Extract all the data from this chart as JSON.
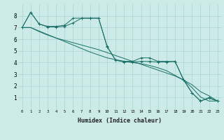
{
  "xlabel": "Humidex (Indice chaleur)",
  "bg_color": "#cceae8",
  "grid_color": "#aad4d0",
  "line_color": "#1a7068",
  "xlim": [
    -0.5,
    23.5
  ],
  "ylim": [
    0,
    9
  ],
  "xticks": [
    0,
    1,
    2,
    3,
    4,
    5,
    6,
    7,
    8,
    9,
    10,
    11,
    12,
    13,
    14,
    15,
    16,
    17,
    18,
    19,
    20,
    21,
    22,
    23
  ],
  "yticks": [
    1,
    2,
    3,
    4,
    5,
    6,
    7,
    8
  ],
  "series": [
    {
      "x": [
        0,
        1,
        2,
        3,
        4,
        5,
        6,
        7,
        8,
        9,
        10,
        11,
        12,
        13,
        14,
        15,
        16,
        17,
        18,
        19,
        20,
        21,
        22,
        23
      ],
      "y": [
        7.0,
        8.3,
        7.3,
        7.1,
        7.1,
        7.2,
        7.8,
        7.8,
        7.8,
        7.8,
        5.4,
        4.2,
        4.1,
        4.1,
        4.4,
        4.4,
        4.1,
        4.1,
        4.1,
        2.5,
        1.4,
        0.7,
        1.0,
        0.7
      ],
      "marker": true
    },
    {
      "x": [
        0,
        1,
        2,
        3,
        4,
        5,
        6,
        7,
        8,
        9,
        10,
        11,
        12,
        13,
        14,
        15,
        16,
        17,
        18,
        19,
        20,
        21,
        22,
        23
      ],
      "y": [
        7.0,
        8.3,
        7.3,
        7.05,
        7.05,
        7.1,
        7.4,
        7.8,
        7.8,
        7.8,
        5.35,
        4.2,
        4.05,
        4.05,
        4.1,
        4.1,
        4.05,
        4.05,
        4.1,
        2.55,
        1.4,
        0.7,
        0.95,
        0.7
      ],
      "marker": true
    },
    {
      "x": [
        0,
        1,
        2,
        3,
        4,
        5,
        6,
        7,
        8,
        9,
        10,
        11,
        12,
        13,
        14,
        15,
        16,
        17,
        18,
        19,
        20,
        21,
        22,
        23
      ],
      "y": [
        7.0,
        7.0,
        6.65,
        6.35,
        6.1,
        5.9,
        5.7,
        5.5,
        5.3,
        5.1,
        4.85,
        4.6,
        4.35,
        4.1,
        3.85,
        3.6,
        3.35,
        3.1,
        2.85,
        2.5,
        2.1,
        1.5,
        1.15,
        0.7
      ],
      "marker": false
    },
    {
      "x": [
        0,
        1,
        2,
        3,
        4,
        5,
        6,
        7,
        8,
        9,
        10,
        11,
        12,
        13,
        14,
        15,
        16,
        17,
        18,
        19,
        20,
        21,
        22,
        23
      ],
      "y": [
        7.0,
        7.0,
        6.7,
        6.4,
        6.1,
        5.8,
        5.5,
        5.2,
        4.9,
        4.65,
        4.4,
        4.25,
        4.1,
        4.0,
        3.9,
        3.75,
        3.55,
        3.3,
        2.9,
        2.5,
        1.85,
        1.05,
        0.7,
        0.7
      ],
      "marker": false
    }
  ]
}
